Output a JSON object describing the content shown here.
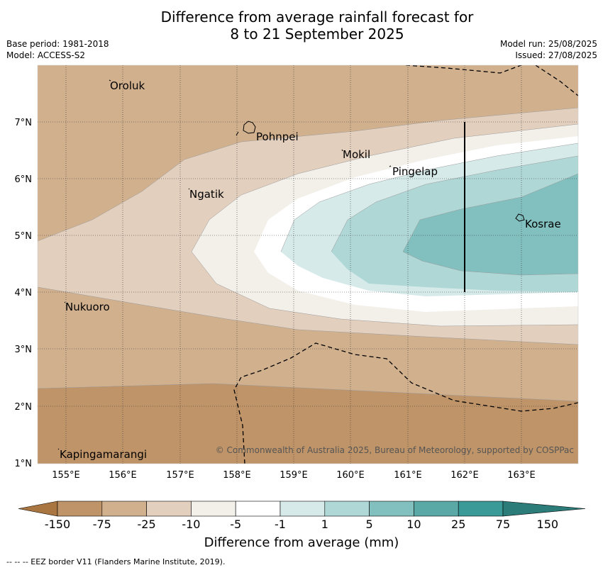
{
  "title_line1": "Difference from average rainfall forecast for",
  "title_line2": "8 to 21 September 2025",
  "base_period": "Base period: 1981-2018",
  "model": "Model: ACCESS-S2",
  "model_run": "Model run: 25/08/2025",
  "issued": "Issued: 27/08/2025",
  "credit": "© Commonwealth of Australia 2025, Bureau of Meteorology, supported by COSPPac",
  "x_tick_labels": [
    "155°E",
    "156°E",
    "157°E",
    "158°E",
    "159°E",
    "160°E",
    "161°E",
    "162°E",
    "163°E"
  ],
  "y_tick_labels": [
    "1°N",
    "2°N",
    "3°N",
    "4°N",
    "5°N",
    "6°N",
    "7°N"
  ],
  "places": [
    "Oroluk",
    "Pohnpei",
    "Mokil",
    "Pingelap",
    "Ngatik",
    "Kosrae",
    "Nukuoro",
    "Kapingamarangi"
  ],
  "colorbar": {
    "labels": [
      "-150",
      "-75",
      "-25",
      "-10",
      "-5",
      "-1",
      "1",
      "5",
      "10",
      "25",
      "75",
      "150"
    ],
    "colors": [
      "#a97540",
      "#bf9468",
      "#d1b08e",
      "#e3cfbd",
      "#f3efe9",
      "#ffffff",
      "#d6eaea",
      "#aed7d6",
      "#81c0be",
      "#5aa9a7",
      "#399a97",
      "#2c7d7a"
    ],
    "title": "Difference from average (mm)"
  },
  "eez_note": "--  --  -- EEZ border V11 (Flanders Marine Institute, 2019)."
}
